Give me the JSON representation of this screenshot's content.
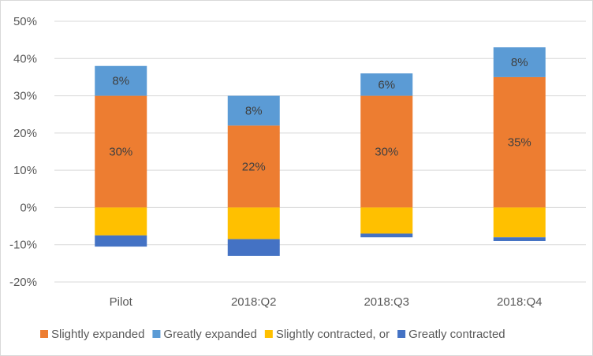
{
  "chart_data": {
    "type": "bar",
    "stacked": true,
    "title": "",
    "xlabel": "",
    "ylabel": "",
    "categories": [
      "Pilot",
      "2018:Q2",
      "2018:Q3",
      "2018:Q4"
    ],
    "ylim": [
      -20,
      50
    ],
    "yticks": [
      -20,
      -10,
      0,
      10,
      20,
      30,
      40,
      50
    ],
    "ytick_labels": [
      "-20%",
      "-10%",
      "0%",
      "10%",
      "20%",
      "30%",
      "40%",
      "50%"
    ],
    "grid": true,
    "legend_position": "bottom",
    "series": [
      {
        "name": "Slightly expanded",
        "color": "#ED7D31",
        "values": [
          30,
          22,
          30,
          35
        ],
        "labels": [
          "30%",
          "22%",
          "30%",
          "35%"
        ]
      },
      {
        "name": "Greatly expanded",
        "color": "#5B9BD5",
        "values": [
          8,
          8,
          6,
          8
        ],
        "labels": [
          "8%",
          "8%",
          "6%",
          "8%"
        ]
      },
      {
        "name": "Slightly contracted, or",
        "color": "#FFC000",
        "values": [
          -7.5,
          -8.5,
          -7,
          -8
        ],
        "labels": []
      },
      {
        "name": "Greatly contracted",
        "color": "#4472C4",
        "values": [
          -3,
          -4.5,
          -1,
          -1
        ],
        "labels": []
      }
    ]
  }
}
